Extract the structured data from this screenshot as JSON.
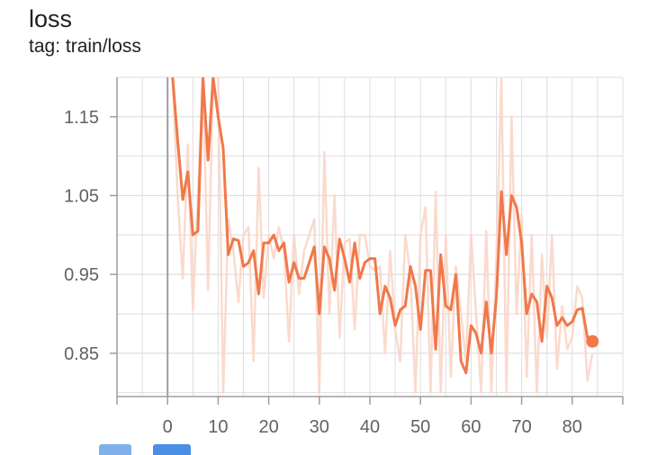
{
  "card": {
    "title": "loss",
    "subtitle": "tag: train/loss"
  },
  "toolbar": {
    "buttons": [
      {
        "icon": "fit-domain-icon",
        "color": "#7fb0ec"
      },
      {
        "icon": "download-icon",
        "color": "#4a8fe6"
      }
    ]
  },
  "chart_data": {
    "type": "line",
    "title": "loss",
    "subtitle": "tag: train/loss",
    "xlabel": "",
    "ylabel": "",
    "xlim": [
      -10,
      90
    ],
    "ylim": [
      0.795,
      1.2
    ],
    "x_ticks": [
      0,
      10,
      20,
      30,
      40,
      50,
      60,
      70,
      80
    ],
    "y_ticks": [
      0.85,
      0.95,
      1.05,
      1.15
    ],
    "y_tick_labels": [
      "0.85",
      "0.95",
      "1.05",
      "1.15"
    ],
    "grid": true,
    "legend": "none",
    "colors": {
      "smoothed": "#f0784a",
      "raw": "#f9d6c8",
      "axis": "#9e9e9e",
      "grid": "#dedede"
    },
    "series": [
      {
        "role": "smoothed",
        "x": [
          1,
          2,
          3,
          4,
          5,
          6,
          7,
          8,
          9,
          10,
          11,
          12,
          13,
          14,
          15,
          16,
          17,
          18,
          19,
          20,
          21,
          22,
          23,
          24,
          25,
          26,
          27,
          28,
          29,
          30,
          31,
          32,
          33,
          34,
          35,
          36,
          37,
          38,
          39,
          40,
          41,
          42,
          43,
          44,
          45,
          46,
          47,
          48,
          49,
          50,
          51,
          52,
          53,
          54,
          55,
          56,
          57,
          58,
          59,
          60,
          61,
          62,
          63,
          64,
          65,
          66,
          67,
          68,
          69,
          70,
          71,
          72,
          73,
          74,
          75,
          76,
          77,
          78,
          79,
          80,
          81,
          82,
          83,
          84
        ],
        "values": [
          1.2,
          1.12,
          1.045,
          1.08,
          1.0,
          1.005,
          1.2,
          1.095,
          1.2,
          1.15,
          1.11,
          0.975,
          0.995,
          0.993,
          0.96,
          0.965,
          0.98,
          0.925,
          0.99,
          0.99,
          1.0,
          0.98,
          0.99,
          0.94,
          0.965,
          0.945,
          0.945,
          0.965,
          0.985,
          0.9,
          0.985,
          0.97,
          0.93,
          0.995,
          0.97,
          0.94,
          0.99,
          0.945,
          0.965,
          0.97,
          0.97,
          0.9,
          0.935,
          0.92,
          0.885,
          0.905,
          0.91,
          0.96,
          0.935,
          0.88,
          0.955,
          0.955,
          0.855,
          0.975,
          0.91,
          0.905,
          0.95,
          0.84,
          0.825,
          0.885,
          0.875,
          0.85,
          0.915,
          0.85,
          0.92,
          1.055,
          0.975,
          1.05,
          1.035,
          0.99,
          0.9,
          0.925,
          0.915,
          0.865,
          0.935,
          0.92,
          0.885,
          0.895,
          0.885,
          0.89,
          0.905,
          0.907,
          0.87,
          0.865
        ]
      },
      {
        "role": "raw",
        "x": [
          1,
          2,
          3,
          4,
          5,
          6,
          7,
          8,
          9,
          10,
          11,
          12,
          13,
          14,
          15,
          16,
          17,
          18,
          19,
          20,
          21,
          22,
          23,
          24,
          25,
          26,
          27,
          28,
          29,
          30,
          31,
          32,
          33,
          34,
          35,
          36,
          37,
          38,
          39,
          40,
          41,
          42,
          43,
          44,
          45,
          46,
          47,
          48,
          49,
          50,
          51,
          52,
          53,
          54,
          55,
          56,
          57,
          58,
          59,
          60,
          61,
          62,
          63,
          64,
          65,
          66,
          67,
          68,
          69,
          70,
          71,
          72,
          73,
          74,
          75,
          76,
          77,
          78,
          79,
          80,
          81,
          82,
          83,
          84
        ],
        "values": [
          1.2,
          1.05,
          0.945,
          1.115,
          0.905,
          1.05,
          1.2,
          0.93,
          1.2,
          1.2,
          0.8,
          1.02,
          0.98,
          0.915,
          1.0,
          1.01,
          0.84,
          1.085,
          0.92,
          1.0,
          0.97,
          1.01,
          0.98,
          0.865,
          1.0,
          0.925,
          0.98,
          1.0,
          1.02,
          0.8,
          1.105,
          0.9,
          1.05,
          0.87,
          0.99,
          0.995,
          0.88,
          1.0,
          1.0,
          0.96,
          0.955,
          0.96,
          0.85,
          0.98,
          0.88,
          0.84,
          1.0,
          0.95,
          0.8,
          1.0,
          1.035,
          0.8,
          1.055,
          0.8,
          1.0,
          0.82,
          0.96,
          0.9,
          0.84,
          1.0,
          0.9,
          0.8,
          1.005,
          0.8,
          0.97,
          1.2,
          0.8,
          1.15,
          0.9,
          1.025,
          0.82,
          1.0,
          0.8,
          0.975,
          0.87,
          1.0,
          0.83,
          0.91,
          0.855,
          0.87,
          0.935,
          0.92,
          0.815,
          0.85
        ]
      }
    ],
    "last_point": {
      "x": 84,
      "y": 0.865
    }
  }
}
